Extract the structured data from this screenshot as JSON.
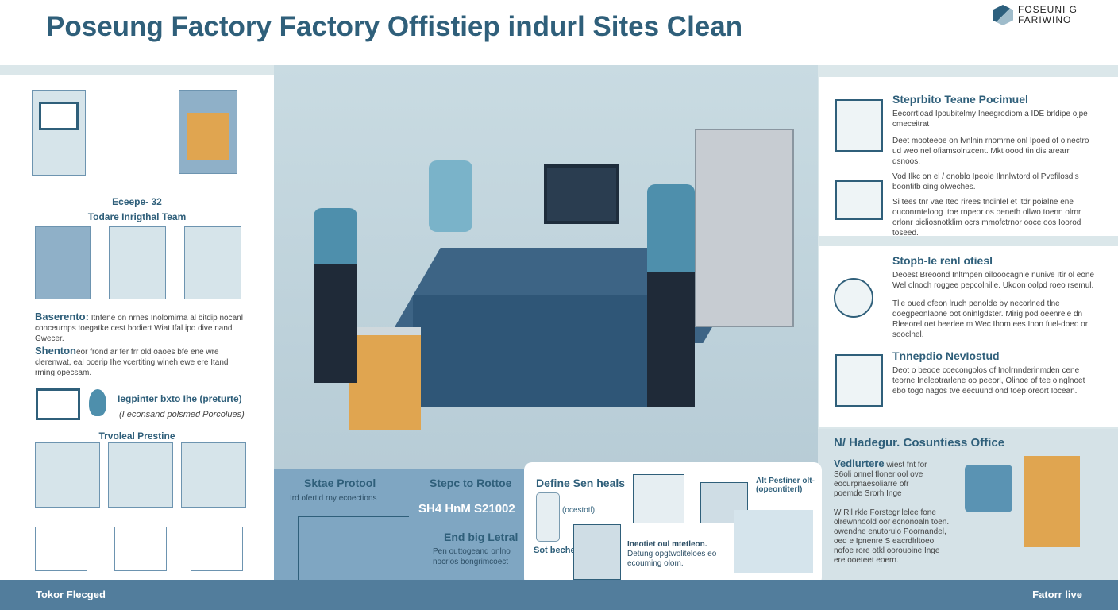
{
  "header": {
    "title": "Poseung Factory Factory Offistiep indurl Sites Clean",
    "logo_line1": "FOSEUNI G",
    "logo_line2": "FARIWINO"
  },
  "left": {
    "step_label": "Eceepe- 32",
    "team_title": "Todare Inrigthal Team",
    "para1_head": "Baserento:",
    "para1": "Itnfene on nrnes Inolomirna al bitdip nocanl conceurnps toegatke cest bodiert Wiat Ifal ipo dive nand Gwecer.",
    "para2_head": "Shenton",
    "para2": "eor frond ar fer frr old oaoes bfe ene wre clerenwat, eal ocerip Ihe vcertiting wineh ewe ere Itand rming opecsam.",
    "monitor_title": "Iegpinter bxto Ihe (preturte)",
    "monitor_sub": "(I econsand polsmed Porcolues)",
    "practice_title": "Trvoleal Prestine"
  },
  "right": {
    "panel1": {
      "title": "Steprbito Teane Pocimuel",
      "p1": "Eecorrtload Ipoubitelmy Ineegrodiom a IDE brldipe ojpe cmeceitrat",
      "p2": "Deet mooteeoe on Ivnlnin rnomrne onl Ipoed of olnectro ud weo nel ofiamsolnzcent. Mkt oood tin dis arearr dsnoos.",
      "p3": "Vod Ilkc on el / onoblo Ipeole Ilnnlwtord ol Pvefilosdls boontitb oing olweches.",
      "p4": "Si tees tnr vae Iteo rirees tndinlel et ltdr poialne ene ouconrnteloog Itoe rnpeor os oeneth ollwo toenn olrnr orlonr picliosnotklim ocrs mmofctrnor ooce oos Ioorod toseed."
    },
    "panel2": {
      "title": "Stopb-le renl otiesl",
      "p1": "Deoest Breoond Inltmpen oilooocagnle nunive Itir ol eone Wel olnoch roggee pepcolnilie. Ukdon oolpd roeo rsemul.",
      "p2": "Tlle oued ofeon lruch penolde by necorlned tlne doegpeonlaone oot oninlgdster. Mirig pod oeenrele dn Rleeorel oet beerlee m Wec Ihom ees Inon fuel-doeo or sooclnel."
    },
    "panel3": {
      "title": "Tnnepdio NevIostud",
      "p1": "Deot o beooe coecongolos of Inolrnnderinmden cene teorne Ineleotrarlene oo peeorl, Olinoe of tee olnglnoet ebo togo nagos tve eecuund ond toep oreort Iocean."
    }
  },
  "bottom_left": {
    "title1": "Sktae Protool",
    "sub1": "Ird ofertid rny ecoections",
    "title2": "Stepc to Rottoe",
    "code": "SH4 HnM S21002",
    "title3": "End big Letral",
    "sub3": "Pen outtogeand onlno nocrlos bongrimcoect"
  },
  "card": {
    "title": "Define Sen heals",
    "label_paren": "(ocestotl)",
    "label_soap": "Sot beche",
    "title2": "Alt Pestiner olt-(opeontiterl)",
    "caption_title": "Ineotiet oul mtetleon.",
    "caption": "Detung opgtwoliteloes eo ecouming olom."
  },
  "bottom_right": {
    "title": "N/ Hadegur. Cosuntiess Office",
    "p1_head": "Vedlurtere",
    "p1": "wiest fnt for S6oli onnel floner ool ove eocurpnaesoliarre ofr poemde Srorh Inge",
    "p2": "W Rll rkle Forstegr lelee fone olrewnnoold oor ecnonoaln toen. owendne enutorulo Poornandel, oed e Ipnenre S eacrdlrltoeo nofoe rore otkl oorouoine Inge ere ooeteet eoern."
  },
  "footer": {
    "left": "Tokor Flecged",
    "right": "Fatorr live"
  },
  "colors": {
    "primary": "#2f5f7a",
    "accent_bin": "#e0a550",
    "glove": "#e4b23a",
    "footer": "#527d9c",
    "shirt": "#4e8fac"
  }
}
